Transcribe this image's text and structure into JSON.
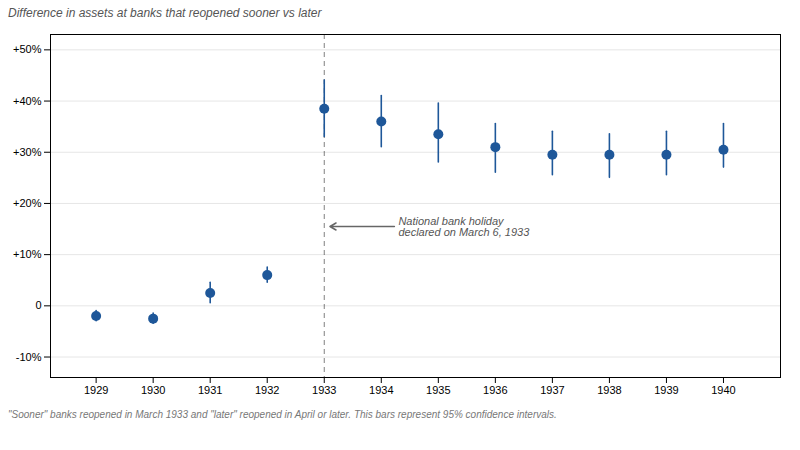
{
  "chart_data": {
    "type": "scatter",
    "ylabel": "Difference in assets at banks that reopened sooner vs later",
    "x": [
      1929,
      1930,
      1931,
      1932,
      1933,
      1934,
      1935,
      1936,
      1937,
      1938,
      1939,
      1940
    ],
    "values": [
      -2,
      -2.5,
      2.5,
      6,
      38.5,
      36,
      33.5,
      31,
      29.5,
      29.5,
      29.5,
      30.5
    ],
    "ci_lower": [
      -3.0,
      -3.5,
      0.5,
      4.5,
      33,
      31,
      28,
      26,
      25.5,
      25,
      25.5,
      27
    ],
    "ci_upper": [
      -1,
      -1.5,
      4.5,
      7.5,
      44,
      41,
      39.5,
      35.5,
      34,
      33.5,
      34,
      35.5
    ],
    "color": "#1e5799",
    "xlim": [
      1928.2,
      1941.0
    ],
    "xticks": [
      1929,
      1930,
      1931,
      1932,
      1933,
      1934,
      1935,
      1936,
      1937,
      1938,
      1939,
      1940
    ],
    "ylim": [
      -14,
      53
    ],
    "yticks": [
      {
        "value": -10,
        "label": "-10%"
      },
      0,
      {
        "value": 10,
        "label": "+10%"
      },
      {
        "value": 20,
        "label": "+20%"
      },
      {
        "value": 30,
        "label": "+30%"
      },
      {
        "value": 40,
        "label": "+40%"
      },
      {
        "value": 50,
        "label": "+50%"
      }
    ],
    "grid": true,
    "vline": {
      "x": 1933,
      "line_style": "dashed"
    },
    "annotations": [
      {
        "text": "National bank holiday\ndeclared on March 6, 1933",
        "x": 1934.3,
        "y": 15.5,
        "arrow_x": 1933.1,
        "arrow_y": 15.5
      }
    ],
    "footnote": "\"Sooner\" banks reopened in March 1933 and \"later\" reopened in April or later. This bars represent 95% confidence intervals."
  }
}
